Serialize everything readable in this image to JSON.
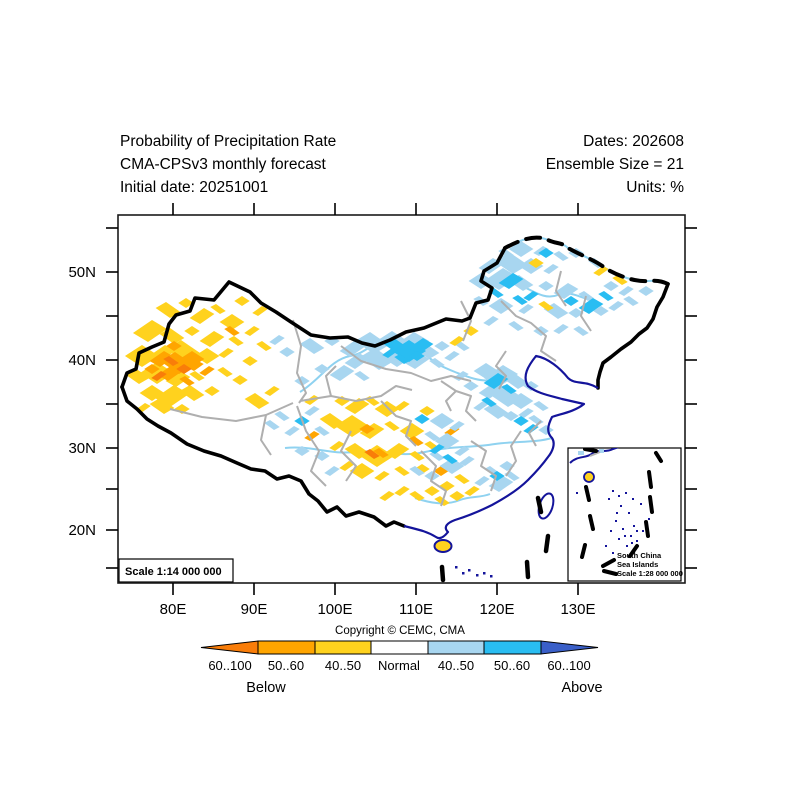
{
  "header": {
    "title": "Probability of Precipitation Rate",
    "subtitle": "CMA-CPSv3 monthly forecast",
    "initial_date": "Initial date: 20251001",
    "dates": "Dates: 202608",
    "ensemble_size": "Ensemble Size = 21",
    "units": "Units: %"
  },
  "map": {
    "lat_labels": [
      "50N",
      "40N",
      "30N",
      "20N"
    ],
    "lon_labels": [
      "80E",
      "90E",
      "100E",
      "110E",
      "120E",
      "130E"
    ],
    "scale_label": "Scale 1:14 000 000",
    "inset": {
      "line1": "South China",
      "line2": "Sea Islands",
      "line3": "Scale 1:28 000 000"
    }
  },
  "footer": {
    "copyright": "Copyright © CEMC, CMA"
  },
  "legend": {
    "below_label": "Below",
    "above_label": "Above",
    "entries": [
      {
        "label": "60..100",
        "color": "#F97D09",
        "side": "below"
      },
      {
        "label": "50..60",
        "color": "#FFA500",
        "side": "below"
      },
      {
        "label": "40..50",
        "color": "#FFD21E",
        "side": "below"
      },
      {
        "label": "Normal",
        "color": "#FFFFFF",
        "side": "normal"
      },
      {
        "label": "40..50",
        "color": "#A8D6F0",
        "side": "above"
      },
      {
        "label": "50..60",
        "color": "#29BDF2",
        "side": "above"
      },
      {
        "label": "60..100",
        "color": "#3A5FC8",
        "side": "above"
      }
    ]
  },
  "colors": {
    "yellow": "#FFD21E",
    "orange": "#FFA500",
    "dark_orange": "#F97D09",
    "light_blue": "#A8D6F0",
    "cyan": "#29BDF2",
    "royal_blue": "#3A5FC8",
    "coast_navy": "#14149B",
    "province_gray": "#AFAFAF",
    "river_blue": "#8FD2F0",
    "border_black": "#000000"
  }
}
